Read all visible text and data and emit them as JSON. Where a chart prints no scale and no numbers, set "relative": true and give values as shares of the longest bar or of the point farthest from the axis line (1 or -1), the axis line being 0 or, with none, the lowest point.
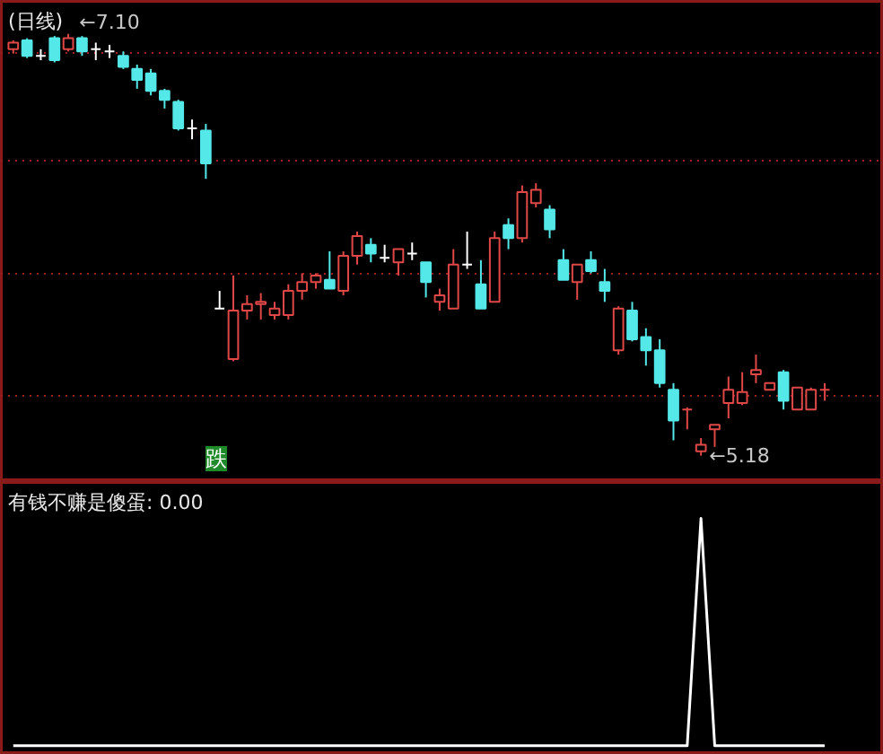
{
  "chart_data": [
    {
      "type": "candlestick",
      "title": "(日线)",
      "categories": [
        null,
        null,
        null,
        null,
        null,
        null,
        null,
        null,
        null,
        null,
        null,
        null,
        null,
        null,
        null,
        null,
        null,
        null,
        null,
        null,
        null,
        null,
        null,
        null,
        null,
        null,
        null,
        null,
        null,
        null,
        null,
        null,
        null,
        null,
        null,
        null,
        null,
        null,
        null,
        null,
        null,
        null,
        null,
        null,
        null,
        null,
        null,
        null,
        null,
        null,
        null,
        null,
        null,
        null,
        null,
        null,
        null,
        null,
        null,
        null
      ],
      "ohlc": [
        [
          7.03,
          7.07,
          7.01,
          7.06
        ],
        [
          7.07,
          7.08,
          6.99,
          7.0
        ],
        [
          7.0,
          7.03,
          6.98,
          7.0
        ],
        [
          7.08,
          7.09,
          6.97,
          6.98
        ],
        [
          7.03,
          7.1,
          7.02,
          7.08
        ],
        [
          7.08,
          7.09,
          7.0,
          7.02
        ],
        [
          7.03,
          7.06,
          6.98,
          7.03
        ],
        [
          7.02,
          7.05,
          6.99,
          7.02
        ],
        [
          7.0,
          7.02,
          6.94,
          6.95
        ],
        [
          6.94,
          6.96,
          6.85,
          6.89
        ],
        [
          6.92,
          6.94,
          6.82,
          6.84
        ],
        [
          6.84,
          6.85,
          6.76,
          6.8
        ],
        [
          6.79,
          6.8,
          6.66,
          6.67
        ],
        [
          6.67,
          6.71,
          6.62,
          6.67
        ],
        [
          6.66,
          6.69,
          6.44,
          6.51
        ],
        [
          5.85,
          5.93,
          5.85,
          5.85
        ],
        [
          5.62,
          6.0,
          5.61,
          5.84
        ],
        [
          5.84,
          5.91,
          5.8,
          5.87
        ],
        [
          5.87,
          5.92,
          5.8,
          5.88
        ],
        [
          5.82,
          5.88,
          5.8,
          5.85
        ],
        [
          5.82,
          5.96,
          5.8,
          5.93
        ],
        [
          5.93,
          6.01,
          5.89,
          5.97
        ],
        [
          5.97,
          6.01,
          5.94,
          6.0
        ],
        [
          5.98,
          6.11,
          5.94,
          5.94
        ],
        [
          5.93,
          6.11,
          5.91,
          6.09
        ],
        [
          6.09,
          6.2,
          6.05,
          6.18
        ],
        [
          6.14,
          6.17,
          6.06,
          6.1
        ],
        [
          6.08,
          6.14,
          6.06,
          6.08
        ],
        [
          6.06,
          6.12,
          6.0,
          6.12
        ],
        [
          6.1,
          6.15,
          6.07,
          6.1
        ],
        [
          6.06,
          6.06,
          5.9,
          5.97
        ],
        [
          5.88,
          5.94,
          5.84,
          5.91
        ],
        [
          5.85,
          6.12,
          5.85,
          6.05
        ],
        [
          6.05,
          6.2,
          6.03,
          6.05
        ],
        [
          5.96,
          6.07,
          5.85,
          5.85
        ],
        [
          5.88,
          6.2,
          5.88,
          6.17
        ],
        [
          6.23,
          6.26,
          6.12,
          6.17
        ],
        [
          6.17,
          6.41,
          6.15,
          6.38
        ],
        [
          6.33,
          6.42,
          6.31,
          6.39
        ],
        [
          6.3,
          6.32,
          6.17,
          6.21
        ],
        [
          6.07,
          6.12,
          5.98,
          5.98
        ],
        [
          5.97,
          6.05,
          5.89,
          6.05
        ],
        [
          6.07,
          6.11,
          6.01,
          6.02
        ],
        [
          5.97,
          6.03,
          5.88,
          5.93
        ],
        [
          5.66,
          5.86,
          5.64,
          5.85
        ],
        [
          5.84,
          5.88,
          5.7,
          5.71
        ],
        [
          5.72,
          5.76,
          5.59,
          5.66
        ],
        [
          5.66,
          5.71,
          5.49,
          5.51
        ],
        [
          5.48,
          5.51,
          5.25,
          5.34
        ],
        [
          5.39,
          5.4,
          5.3,
          5.39
        ],
        [
          5.2,
          5.26,
          5.18,
          5.23
        ],
        [
          5.3,
          5.32,
          5.22,
          5.32
        ],
        [
          5.42,
          5.54,
          5.35,
          5.48
        ],
        [
          5.42,
          5.56,
          5.41,
          5.47
        ],
        [
          5.55,
          5.64,
          5.51,
          5.57
        ],
        [
          5.48,
          5.51,
          5.48,
          5.51
        ],
        [
          5.56,
          5.57,
          5.39,
          5.43
        ],
        [
          5.39,
          5.49,
          5.39,
          5.49
        ],
        [
          5.39,
          5.49,
          5.39,
          5.48
        ],
        [
          5.48,
          5.51,
          5.43,
          5.48
        ]
      ],
      "colors": [
        "#e04848",
        "#54e8e8",
        "#ffffff",
        "#54e8e8",
        "#e04848",
        "#54e8e8",
        "#ffffff",
        "#ffffff",
        "#54e8e8",
        "#54e8e8",
        "#54e8e8",
        "#54e8e8",
        "#54e8e8",
        "#ffffff",
        "#54e8e8",
        "#ffffff",
        "#e04848",
        "#e04848",
        "#e04848",
        "#e04848",
        "#e04848",
        "#e04848",
        "#e04848",
        "#54e8e8",
        "#e04848",
        "#e04848",
        "#54e8e8",
        "#ffffff",
        "#e04848",
        "#ffffff",
        "#54e8e8",
        "#e04848",
        "#e04848",
        "#ffffff",
        "#54e8e8",
        "#e04848",
        "#54e8e8",
        "#e04848",
        "#e04848",
        "#54e8e8",
        "#54e8e8",
        "#e04848",
        "#54e8e8",
        "#54e8e8",
        "#e04848",
        "#54e8e8",
        "#54e8e8",
        "#54e8e8",
        "#54e8e8",
        "#e04848",
        "#e04848",
        "#e04848",
        "#e04848",
        "#e04848",
        "#e04848",
        "#e04848",
        "#54e8e8",
        "#e04848",
        "#e04848",
        "#e04848"
      ],
      "ylim": [
        5.06,
        7.25
      ],
      "yticks": [
        {
          "value": 7.01,
          "label": null
        },
        {
          "value": 6.52,
          "label": null
        },
        {
          "value": 6.01,
          "label": null
        },
        {
          "value": 5.45,
          "label": null
        }
      ],
      "grid": "y",
      "tick_labels": false,
      "annotations": [
        "←7.10",
        "←5.18",
        "跌"
      ]
    },
    {
      "type": "line",
      "title": "有钱不赚是傻蛋: 0.00",
      "relative": true,
      "tick_labels": false,
      "categories": [
        null,
        null,
        null,
        null,
        null,
        null,
        null,
        null,
        null,
        null,
        null,
        null,
        null,
        null,
        null,
        null,
        null,
        null,
        null,
        null,
        null,
        null,
        null,
        null,
        null,
        null,
        null,
        null,
        null,
        null,
        null,
        null,
        null,
        null,
        null,
        null,
        null,
        null,
        null,
        null,
        null,
        null,
        null,
        null,
        null,
        null,
        null,
        null,
        null,
        null,
        null,
        null,
        null,
        null,
        null,
        null,
        null,
        null,
        null,
        null
      ],
      "series": [
        {
          "color": "#ffffff",
          "values": [
            0,
            0,
            0,
            0,
            0,
            0,
            0,
            0,
            0,
            0,
            0,
            0,
            0,
            0,
            0,
            0,
            0,
            0,
            0,
            0,
            0,
            0,
            0,
            0,
            0,
            0,
            0,
            0,
            0,
            0,
            0,
            0,
            0,
            0,
            0,
            0,
            0,
            0,
            0,
            0,
            0,
            0,
            0,
            0,
            0,
            0,
            0,
            0,
            0,
            0,
            1,
            0,
            0,
            0,
            0,
            0,
            0,
            0,
            0,
            0
          ]
        }
      ]
    }
  ]
}
